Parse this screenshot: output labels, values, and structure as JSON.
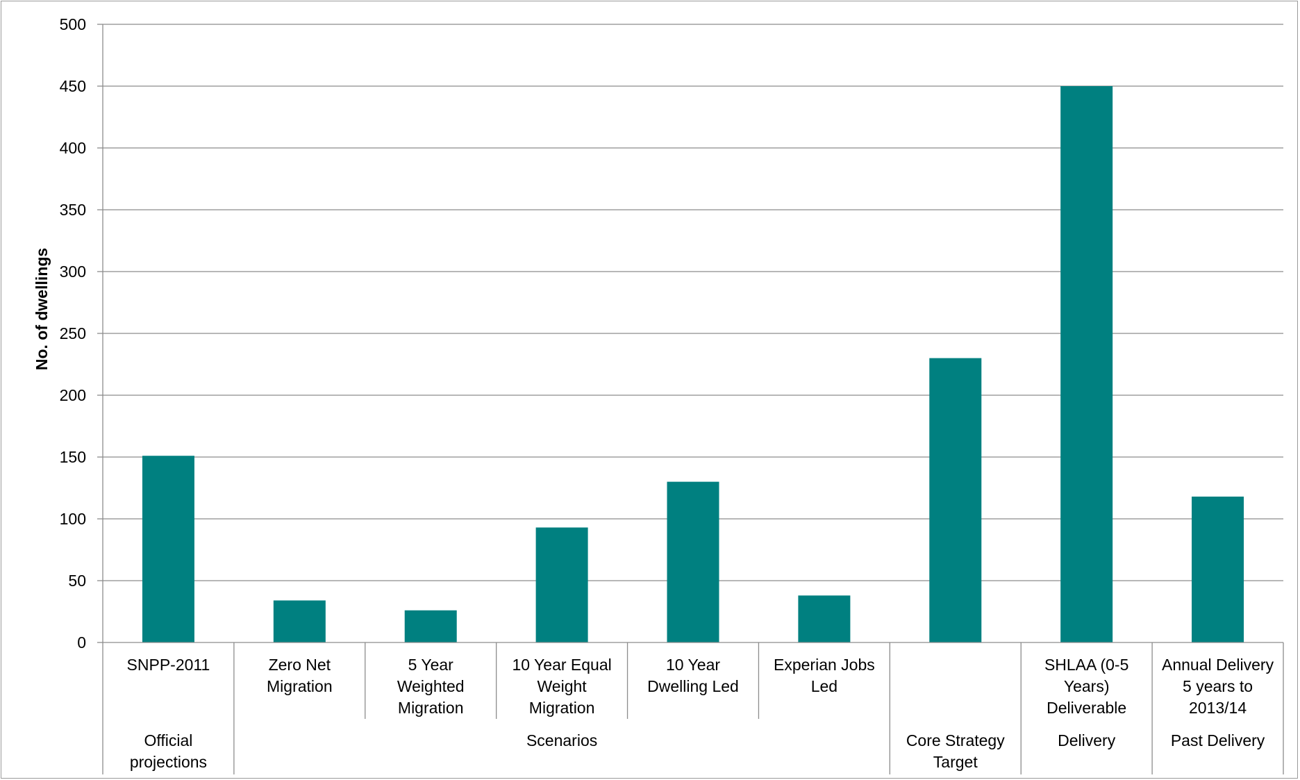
{
  "chart_data": {
    "type": "bar",
    "title": "",
    "xlabel": "",
    "ylabel": "No. of dwellings",
    "ylim": [
      0,
      500
    ],
    "yticks": [
      0,
      50,
      100,
      150,
      200,
      250,
      300,
      350,
      400,
      450,
      500
    ],
    "grid": true,
    "legend": "none",
    "bar_color": "#008080",
    "categories": [
      "SNPP-2011",
      "Zero Net Migration",
      "5 Year Weighted Migration",
      "10 Year Equal Weight Migration",
      "10 Year Dwelling Led",
      "Experian Jobs Led",
      "",
      "SHLAA (0-5 Years) Deliverable",
      "Annual Delivery 5 years to 2013/14"
    ],
    "category_lines": [
      [
        "SNPP-2011"
      ],
      [
        "Zero Net",
        "Migration"
      ],
      [
        "5 Year",
        "Weighted",
        "Migration"
      ],
      [
        "10 Year Equal",
        "Weight",
        "Migration"
      ],
      [
        "10 Year",
        "Dwelling Led"
      ],
      [
        "Experian Jobs",
        "Led"
      ],
      [],
      [
        "SHLAA (0-5",
        "Years)",
        "Deliverable"
      ],
      [
        "Annual Delivery",
        "5 years to",
        "2013/14"
      ]
    ],
    "values": [
      151,
      34,
      26,
      93,
      130,
      38,
      230,
      450,
      118
    ],
    "groups": [
      {
        "label": "Official projections",
        "lines": [
          "Official",
          "projections"
        ],
        "start": 0,
        "end": 0
      },
      {
        "label": "Scenarios",
        "lines": [
          "Scenarios"
        ],
        "start": 1,
        "end": 5
      },
      {
        "label": "Core Strategy Target",
        "lines": [
          "Core Strategy",
          "Target"
        ],
        "start": 6,
        "end": 6
      },
      {
        "label": "Delivery",
        "lines": [
          "Delivery"
        ],
        "start": 7,
        "end": 7
      },
      {
        "label": "Past Delivery",
        "lines": [
          "Past Delivery"
        ],
        "start": 8,
        "end": 8
      }
    ]
  }
}
